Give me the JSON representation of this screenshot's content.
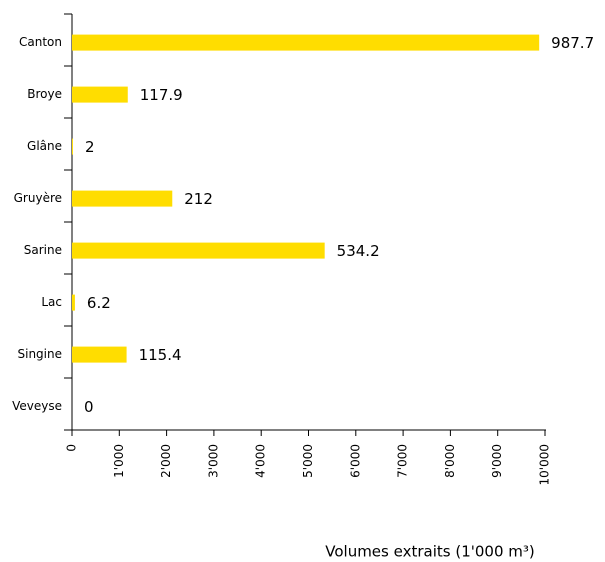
{
  "chart_data": {
    "type": "barh",
    "categories": [
      "Canton",
      "Broye",
      "Glâne",
      "Gruyère",
      "Sarine",
      "Lac",
      "Singine",
      "Veveyse"
    ],
    "values": [
      9877,
      1179,
      20,
      2120,
      5342,
      62,
      1154,
      0
    ],
    "value_labels": [
      "987.7",
      "117.9",
      "2",
      "212",
      "534.2",
      "6.2",
      "115.4",
      "0"
    ],
    "color": "#ffdd00",
    "xlim": [
      0,
      10000
    ],
    "xticks": [
      0,
      {
        "value": 1000,
        "label": "1'000"
      },
      {
        "value": 2000,
        "label": "2'000"
      },
      {
        "value": 3000,
        "label": "3'000"
      },
      {
        "value": 4000,
        "label": "4'000"
      },
      {
        "value": 5000,
        "label": "5'000"
      },
      {
        "value": 6000,
        "label": "6'000"
      },
      {
        "value": 7000,
        "label": "7'000"
      },
      {
        "value": 8000,
        "label": "8'000"
      },
      {
        "value": 9000,
        "label": "9'000"
      },
      {
        "value": 10000,
        "label": "10'000"
      }
    ],
    "xlabel": "Volumes extraits (1'000 m³)",
    "grid": false
  }
}
